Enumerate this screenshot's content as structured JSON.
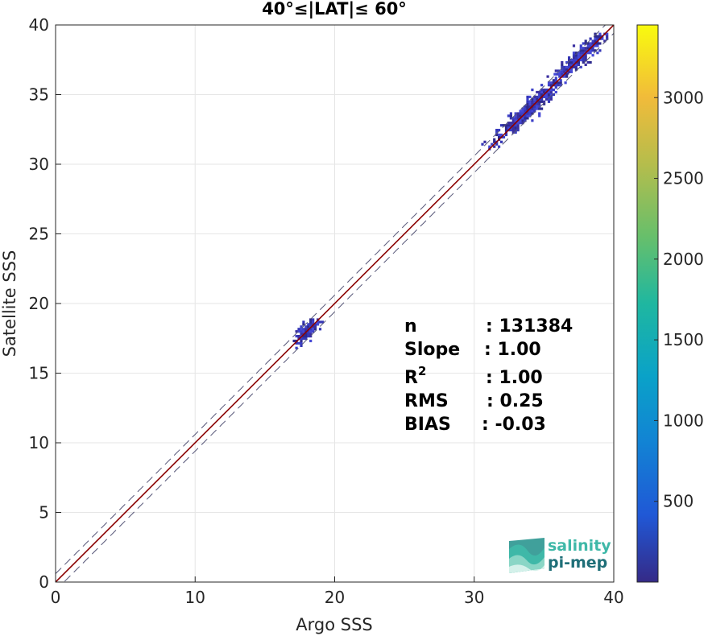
{
  "chart_data": {
    "type": "heatmap",
    "title": "40°≤|LAT|≤ 60°",
    "xlabel": "Argo SSS",
    "ylabel": "Satellite SSS",
    "xlim": [
      0,
      40
    ],
    "ylim": [
      0,
      40
    ],
    "x_ticks": [
      "0",
      "10",
      "20",
      "30",
      "40"
    ],
    "y_ticks": [
      "0",
      "5",
      "10",
      "15",
      "20",
      "25",
      "30",
      "35",
      "40"
    ],
    "grid": true,
    "colorbar": {
      "ticks": [
        "500",
        "1000",
        "1500",
        "2000",
        "2500",
        "3000"
      ],
      "tick_values": [
        500,
        1000,
        1500,
        2000,
        2500,
        3000
      ],
      "range": [
        0,
        3450
      ],
      "colormap": "parula"
    },
    "lines": [
      {
        "kind": "identity",
        "slope": 1.0,
        "intercept": 0.0,
        "color": "#8b0000",
        "style": "solid"
      },
      {
        "kind": "upper-bound",
        "slope": 1.0,
        "intercept": 0.6,
        "color": "#555577",
        "style": "dashed"
      },
      {
        "kind": "lower-bound",
        "slope": 1.0,
        "intercept": -0.6,
        "color": "#555577",
        "style": "dashed"
      }
    ],
    "clusters": [
      {
        "x_range": [
          17.0,
          19.2
        ],
        "y_range": [
          16.2,
          18.9
        ],
        "center": [
          18.0,
          18.0
        ],
        "spread": 0.5
      },
      {
        "x_range": [
          30.5,
          36.9
        ],
        "y_range": [
          31.0,
          36.8
        ],
        "center": [
          33.8,
          33.8
        ],
        "spread": 1.4
      },
      {
        "x_range": [
          34.5,
          39.5
        ],
        "y_range": [
          36.2,
          39.3
        ],
        "center": [
          37.5,
          37.6
        ],
        "spread": 1.0
      }
    ],
    "stats": [
      {
        "label": "n",
        "value": ": 131384"
      },
      {
        "label": "Slope",
        "value": ": 1.00"
      },
      {
        "label": "R",
        "sup": "2",
        "value": ": 1.00"
      },
      {
        "label": "RMS",
        "value": ": 0.25"
      },
      {
        "label": "BIAS",
        "value": ": -0.03"
      }
    ]
  },
  "logo": {
    "line1": "salinity",
    "line2": "pi-mep",
    "colors": {
      "line1": "#3fb8a8",
      "line2": "#1f6f78"
    }
  }
}
